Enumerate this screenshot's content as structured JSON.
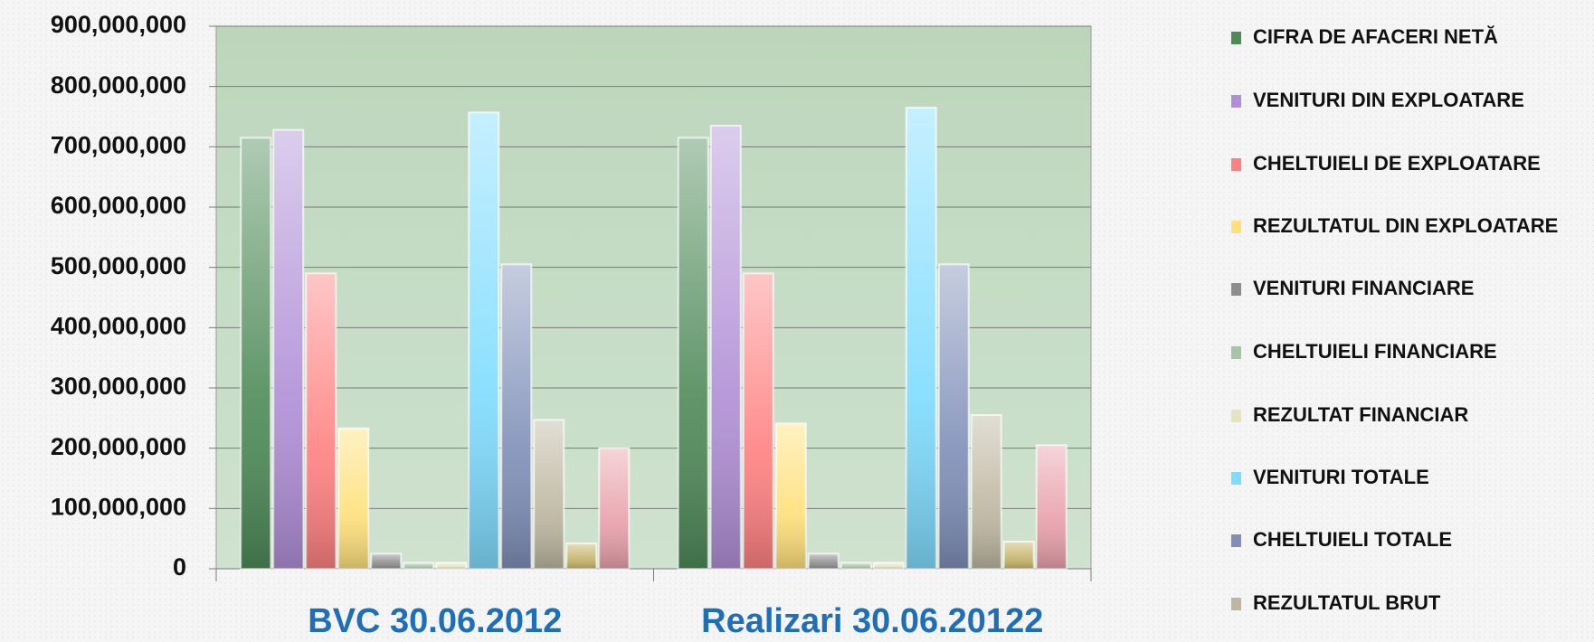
{
  "chart_data": {
    "type": "bar",
    "categories": [
      "BVC 30.06.2012",
      "Realizari 30.06.20122"
    ],
    "series": [
      {
        "name": "CIFRA DE AFACERI NETĂ",
        "color": "#4e8a58",
        "values": [
          715000000,
          715000000
        ]
      },
      {
        "name": "VENITURI DIN EXPLOATARE",
        "color": "#b08fd6",
        "values": [
          728000000,
          735000000
        ]
      },
      {
        "name": "CHELTUIELI DE EXPLOATARE",
        "color": "#ff8080",
        "values": [
          490000000,
          490000000
        ]
      },
      {
        "name": "REZULTATUL DIN EXPLOATARE",
        "color": "#ffe07a",
        "values": [
          233000000,
          241000000
        ]
      },
      {
        "name": "VENITURI FINANCIARE",
        "color": "#8e8e8e",
        "values": [
          25000000,
          25000000
        ]
      },
      {
        "name": "CHELTUIELI FINANCIARE",
        "color": "#a6c4a6",
        "values": [
          10000000,
          10000000
        ]
      },
      {
        "name": "REZULTAT FINANCIAR",
        "color": "#e6e4c0",
        "values": [
          10000000,
          10000000
        ]
      },
      {
        "name": "VENITURI TOTALE",
        "color": "#80dcff",
        "values": [
          757000000,
          765000000
        ]
      },
      {
        "name": "CHELTUIELI TOTALE",
        "color": "#7f8fb8",
        "values": [
          505000000,
          505000000
        ]
      },
      {
        "name": "REZULTATUL BRUT",
        "color": "#bdb6a0",
        "values": [
          247000000,
          255000000
        ]
      },
      {
        "name": null,
        "color": "#c6b46a",
        "values": [
          42000000,
          45000000
        ]
      },
      {
        "name": null,
        "color": "#e8a0aa",
        "values": [
          200000000,
          205000000
        ]
      }
    ],
    "ylim": [
      0,
      900000000
    ],
    "yticks": [
      0,
      {
        "value": 100000000,
        "label": "100,000,000"
      },
      {
        "value": 200000000,
        "label": "200,000,000"
      },
      {
        "value": 300000000,
        "label": "300,000,000"
      },
      {
        "value": 400000000,
        "label": "400,000,000"
      },
      {
        "value": 500000000,
        "label": "500,000,000"
      },
      {
        "value": 600000000,
        "label": "600,000,000"
      },
      {
        "value": 700000000,
        "label": "700,000,000"
      },
      {
        "value": 800000000,
        "label": "800,000,000"
      },
      {
        "value": 900000000,
        "label": "900,000,000"
      }
    ],
    "grid": true
  }
}
